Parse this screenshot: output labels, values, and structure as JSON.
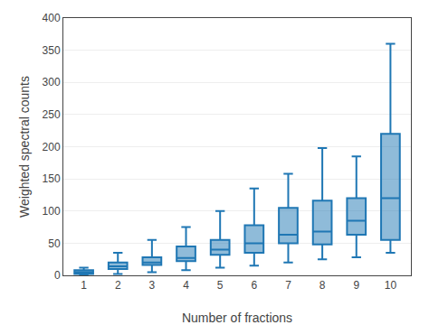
{
  "chart_data": {
    "type": "box",
    "xlabel": "Number of fractions",
    "ylabel": "Weighted spectral counts",
    "x": [
      1,
      2,
      3,
      4,
      5,
      6,
      7,
      8,
      9,
      10
    ],
    "boxes": [
      {
        "whislo": 0,
        "q1": 2,
        "med": 5,
        "q3": 8,
        "whishi": 12
      },
      {
        "whislo": 2,
        "q1": 10,
        "med": 14,
        "q3": 20,
        "whishi": 35
      },
      {
        "whislo": 5,
        "q1": 16,
        "med": 20,
        "q3": 28,
        "whishi": 55
      },
      {
        "whislo": 8,
        "q1": 22,
        "med": 27,
        "q3": 45,
        "whishi": 75
      },
      {
        "whislo": 12,
        "q1": 32,
        "med": 40,
        "q3": 55,
        "whishi": 100
      },
      {
        "whislo": 15,
        "q1": 35,
        "med": 50,
        "q3": 78,
        "whishi": 135
      },
      {
        "whislo": 20,
        "q1": 50,
        "med": 63,
        "q3": 105,
        "whishi": 158
      },
      {
        "whislo": 25,
        "q1": 48,
        "med": 68,
        "q3": 116,
        "whishi": 198
      },
      {
        "whislo": 28,
        "q1": 63,
        "med": 85,
        "q3": 120,
        "whishi": 185
      },
      {
        "whislo": 35,
        "q1": 55,
        "med": 120,
        "q3": 220,
        "whishi": 360
      }
    ],
    "xlim": [
      0.4,
      10.6
    ],
    "xticks": [
      1,
      2,
      3,
      4,
      5,
      6,
      7,
      8,
      9,
      10
    ],
    "ylim": [
      0,
      400
    ],
    "yticks": [
      0,
      50,
      100,
      150,
      200,
      250,
      300,
      350,
      400
    ],
    "grid": true
  }
}
